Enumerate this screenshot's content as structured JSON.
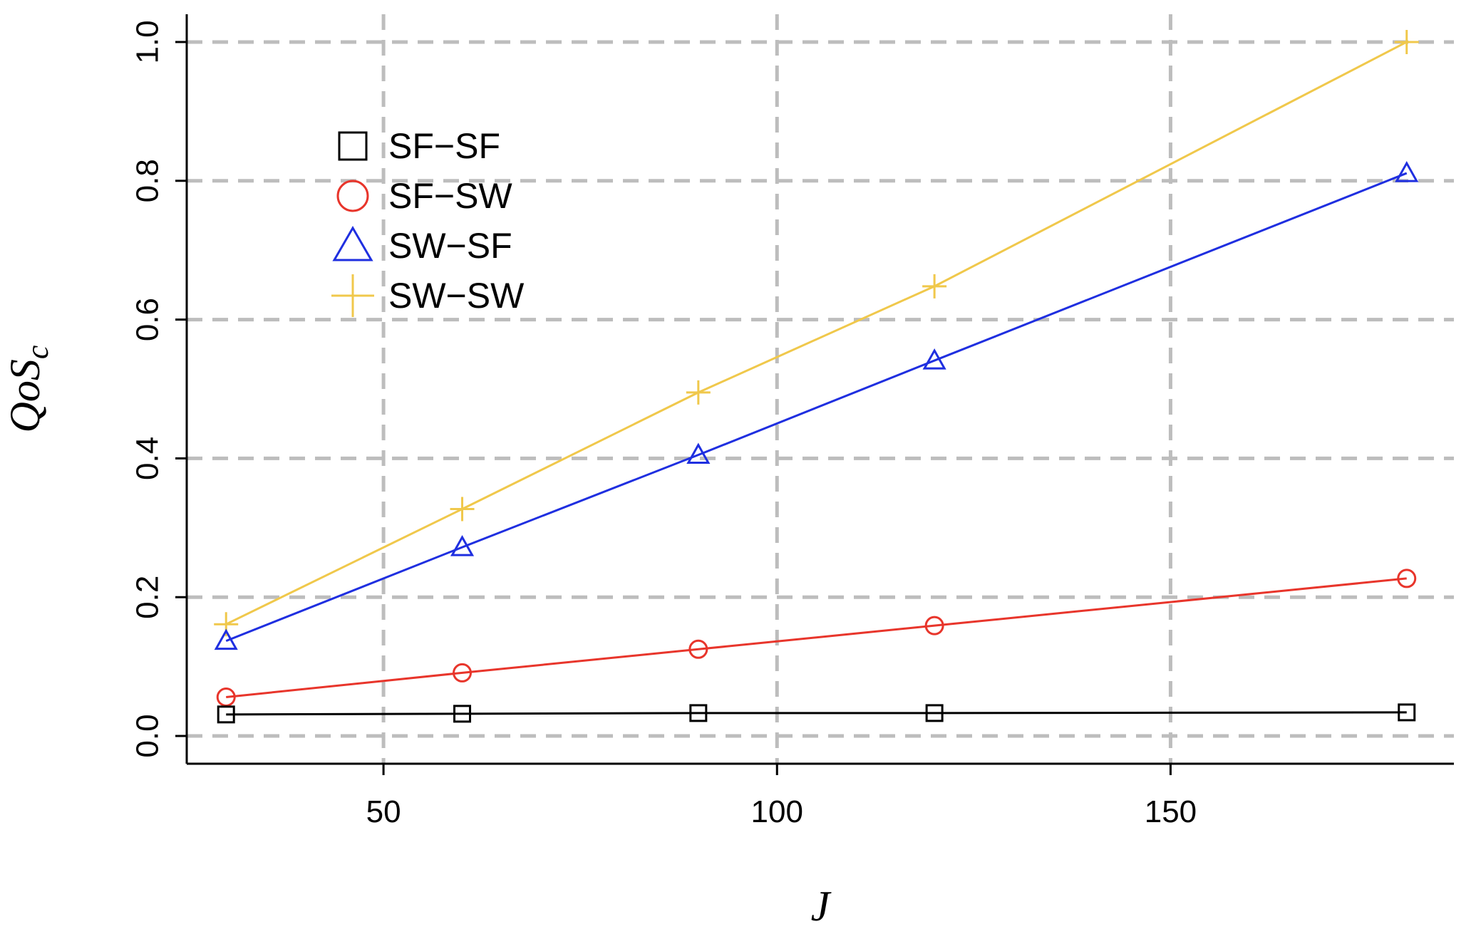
{
  "chart_data": {
    "type": "line",
    "title": "",
    "xlabel": "J",
    "ylabel": {
      "main": "QoS",
      "sub": "c"
    },
    "x": [
      30,
      60,
      90,
      120,
      180
    ],
    "xlim": [
      25,
      186
    ],
    "ylim": [
      -0.04,
      1.04
    ],
    "xticks": [
      50,
      100,
      150
    ],
    "xtick_labels": [
      "50",
      "100",
      "150"
    ],
    "yticks": [
      0.0,
      0.2,
      0.4,
      0.6,
      0.8,
      1.0
    ],
    "ytick_labels": [
      "0.0",
      "0.2",
      "0.4",
      "0.6",
      "0.8",
      "1.0"
    ],
    "grid": true,
    "grid_style": "dashed",
    "grid_color": "#bdbdbd",
    "legend_position": "top-left",
    "series": [
      {
        "name": "SF−SF",
        "marker": "square",
        "color": "#000000",
        "values": [
          0.031,
          0.032,
          0.033,
          0.033,
          0.034
        ]
      },
      {
        "name": "SF−SW",
        "marker": "circle",
        "color": "#e8352b",
        "values": [
          0.056,
          0.091,
          0.125,
          0.159,
          0.227
        ]
      },
      {
        "name": "SW−SF",
        "marker": "triangle",
        "color": "#1f2fe0",
        "values": [
          0.137,
          0.272,
          0.405,
          0.541,
          0.811
        ]
      },
      {
        "name": "SW−SW",
        "marker": "plus",
        "color": "#f0c84b",
        "values": [
          0.161,
          0.327,
          0.495,
          0.648,
          1.0
        ]
      }
    ]
  }
}
